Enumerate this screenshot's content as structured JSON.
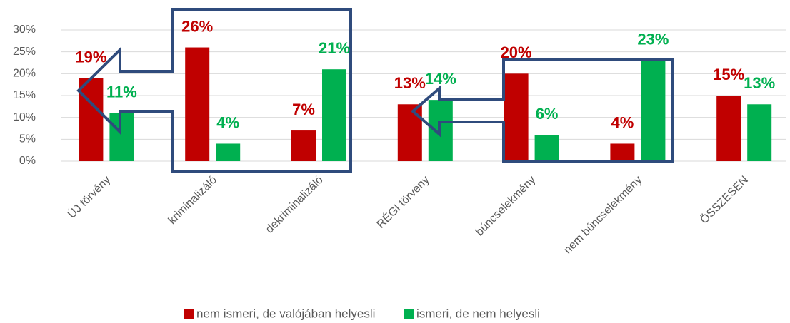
{
  "chart_data": {
    "type": "bar",
    "categories": [
      "ÚJ törvény",
      "kriminalizáló",
      "dekriminalizáló",
      "RÉGI törvény",
      "búncselekmény",
      "nem búncselekmény",
      "ÖSSZESEN"
    ],
    "series": [
      {
        "name": "nem ismeri, de valójában helyesli",
        "color": "#c00000",
        "values": [
          19,
          26,
          7,
          13,
          20,
          4,
          15
        ],
        "value_labels": [
          "19%",
          "26%",
          "7%",
          "13%",
          "20%",
          "4%",
          "15%"
        ]
      },
      {
        "name": "ismeri, de nem helyesli",
        "color": "#00b050",
        "values": [
          11,
          4,
          21,
          14,
          6,
          23,
          13
        ],
        "value_labels": [
          "11%",
          "4%",
          "21%",
          "14%",
          "6%",
          "23%",
          "13%"
        ]
      }
    ],
    "ylim": [
      0,
      30
    ],
    "yticks": [
      {
        "value": 0,
        "label": "0%"
      },
      {
        "value": 5,
        "label": "5%"
      },
      {
        "value": 10,
        "label": "10%"
      },
      {
        "value": 15,
        "label": "15%"
      },
      {
        "value": 20,
        "label": "20%"
      },
      {
        "value": 25,
        "label": "25%"
      },
      {
        "value": 30,
        "label": "30%"
      }
    ],
    "grid": true,
    "legend": "bottom"
  }
}
